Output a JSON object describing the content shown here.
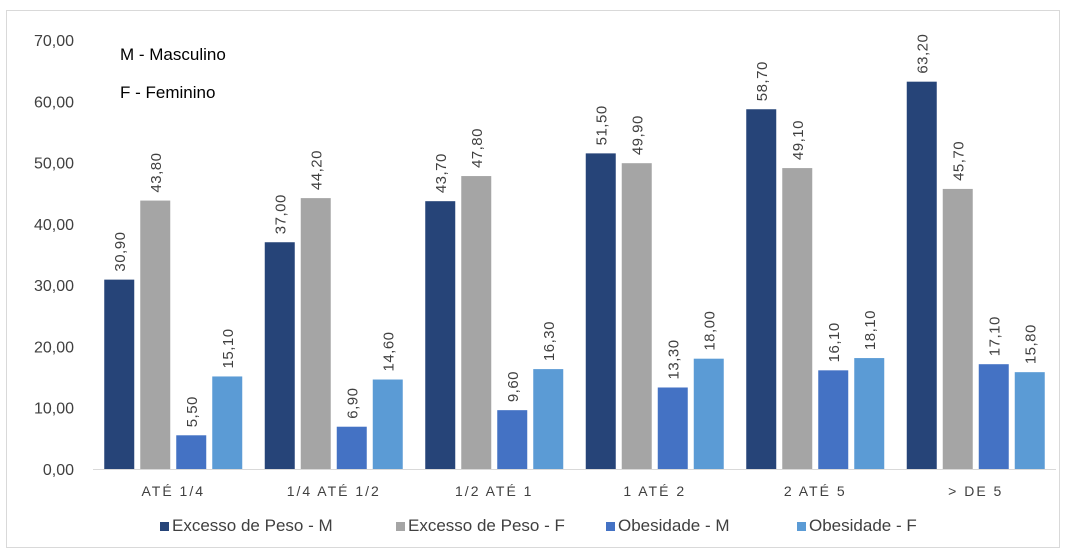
{
  "chart_data": {
    "type": "bar",
    "categories": [
      "ATÉ 1/4",
      "1/4 ATÉ 1/2",
      "1/2 ATÉ 1",
      "1 ATÉ 2",
      "2 ATÉ 5",
      "> DE 5"
    ],
    "series": [
      {
        "name": "Excesso de Peso - M",
        "color": "#264478",
        "values": [
          30.9,
          37.0,
          43.7,
          51.5,
          58.7,
          63.2
        ],
        "labels": [
          "30,90",
          "37,00",
          "43,70",
          "51,50",
          "58,70",
          "63,20"
        ]
      },
      {
        "name": "Excesso de Peso - F",
        "color": "#a5a5a5",
        "values": [
          43.8,
          44.2,
          47.8,
          49.9,
          49.1,
          45.7
        ],
        "labels": [
          "43,80",
          "44,20",
          "47,80",
          "49,90",
          "49,10",
          "45,70"
        ]
      },
      {
        "name": "Obesidade - M",
        "color": "#4472c4",
        "values": [
          5.5,
          6.9,
          9.6,
          13.3,
          16.1,
          17.1
        ],
        "labels": [
          "5,50",
          "6,90",
          "9,60",
          "13,30",
          "16,10",
          "17,10"
        ]
      },
      {
        "name": "Obesidade - F",
        "color": "#5b9bd5",
        "values": [
          15.1,
          14.6,
          16.3,
          18.0,
          18.1,
          15.8
        ],
        "labels": [
          "15,10",
          "14,60",
          "16,30",
          "18,00",
          "18,10",
          "15,80"
        ]
      }
    ],
    "ylim": [
      0,
      70
    ],
    "y_ticks": [
      "0,00",
      "10,00",
      "20,00",
      "30,00",
      "40,00",
      "50,00",
      "60,00",
      "70,00"
    ],
    "annotations": [
      "M - Masculino",
      "F - Feminino"
    ],
    "legend_position": "bottom",
    "grid": false
  }
}
